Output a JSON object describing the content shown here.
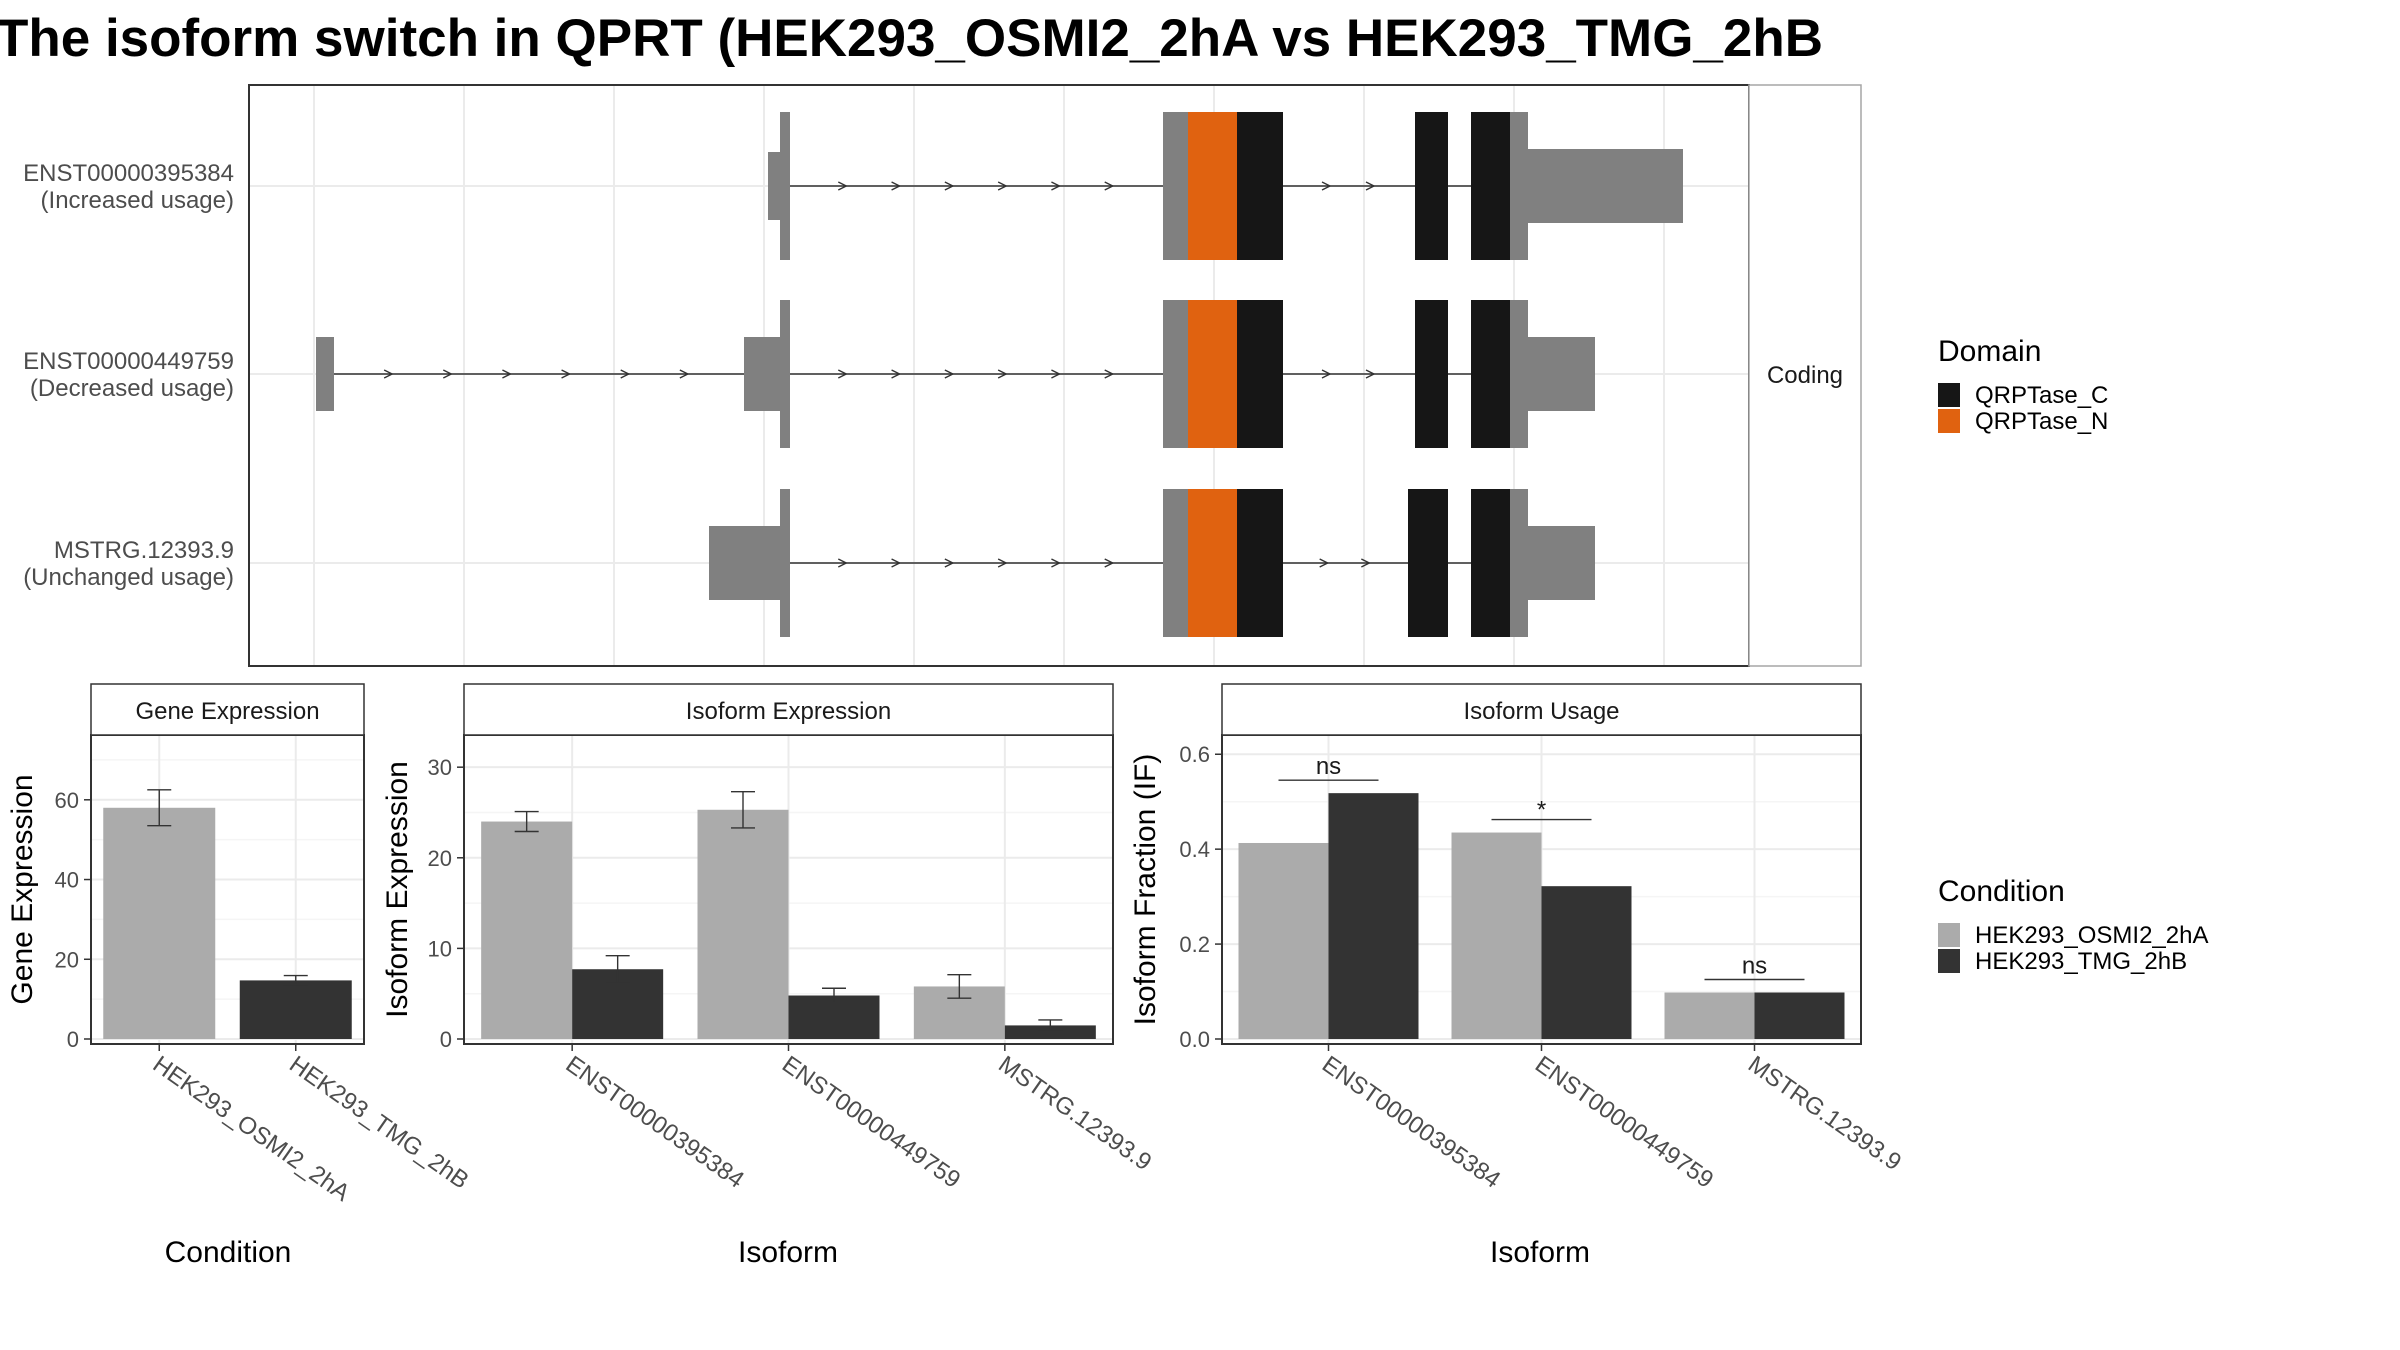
{
  "title": "The isoform switch in QPRT (HEK293_OSMI2_2hA vs HEK293_TMG_2hB",
  "colors": {
    "cond_a": "#ababab",
    "cond_b": "#333333",
    "domain_c": "#161616",
    "domain_n": "#e06210",
    "noncoding": "#808080",
    "grid": "#ebebeb",
    "panel_border": "#333333",
    "strip_border": "#a5a5a5"
  },
  "structure": {
    "facet_label": "Coding",
    "transcripts": [
      {
        "id": "ENST00000395384",
        "usage": "(Increased usage)"
      },
      {
        "id": "ENST00000449759",
        "usage": "(Decreased usage)"
      },
      {
        "id": "MSTRG.12393.9",
        "usage": "(Unchanged usage)"
      }
    ]
  },
  "legend": {
    "domain_title": "Domain",
    "domains": [
      {
        "label": "QRPTase_C",
        "color": "#161616"
      },
      {
        "label": "QRPTase_N",
        "color": "#e06210"
      }
    ],
    "condition_title": "Condition",
    "conditions": [
      {
        "label": "HEK293_OSMI2_2hA",
        "color": "#ababab"
      },
      {
        "label": "HEK293_TMG_2hB",
        "color": "#333333"
      }
    ]
  },
  "chart_data": [
    {
      "type": "bar",
      "title": "Gene Expression",
      "xlabel": "Condition",
      "ylabel": "Gene Expression",
      "categories": [
        "HEK293_OSMI2_2hA",
        "HEK293_TMG_2hB"
      ],
      "values": [
        58,
        14.7
      ],
      "error_low": [
        53.5,
        13.5
      ],
      "error_high": [
        62.5,
        15.9
      ],
      "ylim": [
        0,
        75
      ],
      "yticks": [
        0,
        20,
        40,
        60
      ],
      "ytick_labels": [
        "0",
        "20",
        "40",
        "60"
      ],
      "grid": true
    },
    {
      "type": "bar",
      "title": "Isoform Expression",
      "xlabel": "Isoform",
      "ylabel": "Isoform Expression",
      "categories": [
        "ENST00000395384",
        "ENST00000449759",
        "MSTRG.12393.9"
      ],
      "series": [
        {
          "name": "HEK293_OSMI2_2hA",
          "values": [
            24.0,
            25.3,
            5.8
          ],
          "error_low": [
            22.9,
            23.3,
            4.5
          ],
          "error_high": [
            25.1,
            27.3,
            7.1
          ]
        },
        {
          "name": "HEK293_TMG_2hB",
          "values": [
            7.7,
            4.8,
            1.5
          ],
          "error_low": [
            6.2,
            4.0,
            0.9
          ],
          "error_high": [
            9.2,
            5.6,
            2.1
          ]
        }
      ],
      "ylim": [
        0,
        33
      ],
      "yticks": [
        0,
        10,
        20,
        30
      ],
      "ytick_labels": [
        "0",
        "10",
        "20",
        "30"
      ],
      "grid": true
    },
    {
      "type": "bar",
      "title": "Isoform Usage",
      "xlabel": "Isoform",
      "ylabel": "Isoform Fraction (IF)",
      "categories": [
        "ENST00000395384",
        "ENST00000449759",
        "MSTRG.12393.9"
      ],
      "series": [
        {
          "name": "HEK293_OSMI2_2hA",
          "values": [
            0.413,
            0.435,
            0.098
          ]
        },
        {
          "name": "HEK293_TMG_2hB",
          "values": [
            0.518,
            0.322,
            0.098
          ]
        }
      ],
      "significance": [
        "ns",
        "*",
        "ns"
      ],
      "ylim": [
        0,
        0.63
      ],
      "yticks": [
        0.0,
        0.2,
        0.4,
        0.6
      ],
      "ytick_labels": [
        "0.0",
        "0.2",
        "0.4",
        "0.6"
      ],
      "grid": true
    }
  ]
}
